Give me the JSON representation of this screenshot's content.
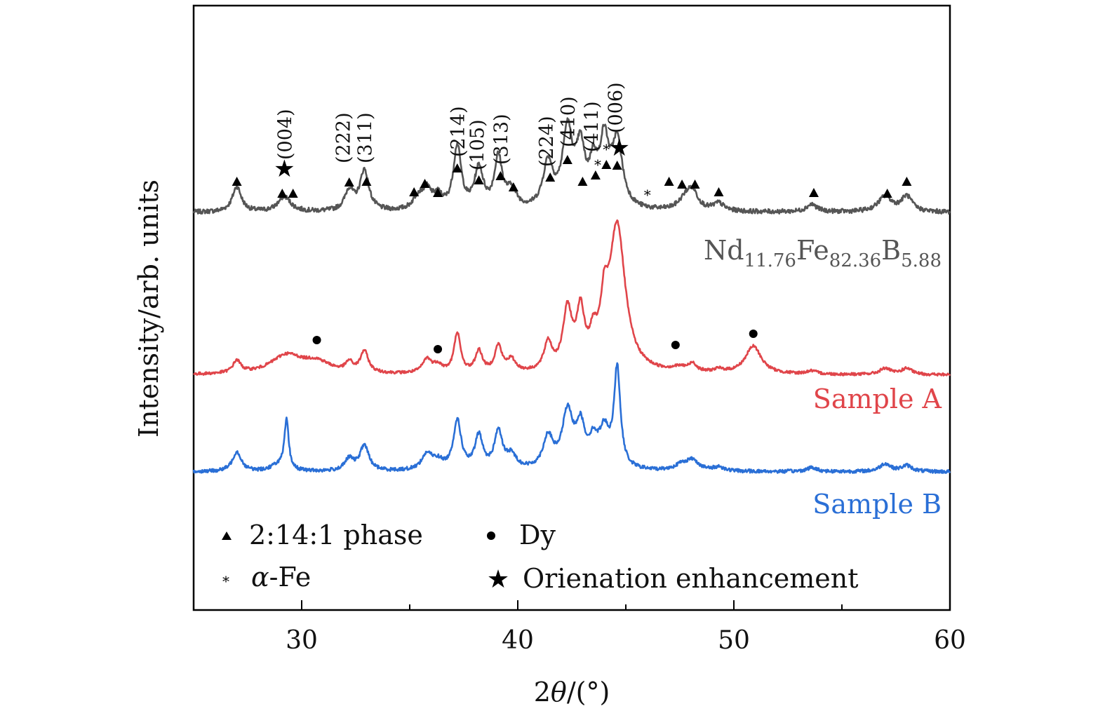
{
  "chart_data": {
    "type": "line",
    "title": "",
    "xlabel": "2θ/(°)",
    "ylabel": "Intensity/arb. units",
    "xlim": [
      25,
      60
    ],
    "xticks": [
      30,
      40,
      50,
      60
    ],
    "grid": false,
    "series": [
      {
        "name": "Nd11.76Fe82.36B5.88",
        "label_base": [
          "Nd",
          "Fe",
          "B"
        ],
        "label_sub": [
          "11.76",
          "82.36",
          "5.88"
        ],
        "color": "#555555",
        "offset": 2.0,
        "peaks": [
          [
            27.0,
            0.1,
            0.25
          ],
          [
            29.2,
            0.06,
            0.35
          ],
          [
            32.2,
            0.08,
            0.25
          ],
          [
            32.9,
            0.16,
            0.25
          ],
          [
            35.4,
            0.05,
            0.3
          ],
          [
            35.8,
            0.07,
            0.25
          ],
          [
            36.3,
            0.05,
            0.25
          ],
          [
            37.2,
            0.25,
            0.22
          ],
          [
            38.2,
            0.16,
            0.25
          ],
          [
            39.1,
            0.2,
            0.22
          ],
          [
            39.7,
            0.07,
            0.3
          ],
          [
            41.4,
            0.18,
            0.28
          ],
          [
            42.3,
            0.3,
            0.28
          ],
          [
            42.9,
            0.22,
            0.25
          ],
          [
            43.5,
            0.15,
            0.22
          ],
          [
            44.0,
            0.25,
            0.25
          ],
          [
            44.6,
            0.26,
            0.3
          ],
          [
            47.8,
            0.05,
            0.4
          ],
          [
            48.1,
            0.06,
            0.3
          ],
          [
            49.3,
            0.03,
            0.3
          ],
          [
            53.6,
            0.03,
            0.3
          ],
          [
            57.0,
            0.06,
            0.4
          ],
          [
            58.0,
            0.06,
            0.3
          ]
        ]
      },
      {
        "name": "Sample A",
        "color": "#e0454a",
        "offset": 1.0,
        "peaks": [
          [
            27.0,
            0.08,
            0.22
          ],
          [
            29.3,
            0.12,
            0.9
          ],
          [
            30.7,
            0.07,
            0.8
          ],
          [
            32.2,
            0.06,
            0.2
          ],
          [
            32.9,
            0.14,
            0.22
          ],
          [
            35.8,
            0.09,
            0.25
          ],
          [
            36.3,
            0.05,
            0.25
          ],
          [
            37.2,
            0.26,
            0.18
          ],
          [
            38.2,
            0.14,
            0.2
          ],
          [
            39.1,
            0.17,
            0.2
          ],
          [
            39.7,
            0.08,
            0.25
          ],
          [
            41.4,
            0.18,
            0.22
          ],
          [
            42.3,
            0.38,
            0.25
          ],
          [
            42.9,
            0.35,
            0.22
          ],
          [
            43.5,
            0.16,
            0.2
          ],
          [
            44.0,
            0.3,
            0.2
          ],
          [
            44.6,
            0.95,
            0.45
          ],
          [
            47.5,
            0.03,
            0.5
          ],
          [
            48.1,
            0.05,
            0.2
          ],
          [
            49.3,
            0.02,
            0.3
          ],
          [
            50.9,
            0.18,
            0.45
          ],
          [
            53.6,
            0.02,
            0.3
          ],
          [
            57.0,
            0.04,
            0.3
          ],
          [
            58.0,
            0.04,
            0.3
          ]
        ]
      },
      {
        "name": "Sample B",
        "color": "#2a6fd6",
        "offset": 0.0,
        "peaks": [
          [
            27.0,
            0.1,
            0.25
          ],
          [
            28.9,
            0.03,
            0.4
          ],
          [
            29.3,
            0.25,
            0.12
          ],
          [
            32.2,
            0.06,
            0.25
          ],
          [
            32.9,
            0.13,
            0.25
          ],
          [
            35.8,
            0.08,
            0.3
          ],
          [
            36.3,
            0.04,
            0.3
          ],
          [
            37.2,
            0.25,
            0.22
          ],
          [
            38.2,
            0.17,
            0.22
          ],
          [
            39.1,
            0.19,
            0.22
          ],
          [
            39.7,
            0.07,
            0.3
          ],
          [
            41.4,
            0.16,
            0.28
          ],
          [
            42.3,
            0.28,
            0.3
          ],
          [
            42.9,
            0.2,
            0.25
          ],
          [
            43.5,
            0.12,
            0.25
          ],
          [
            44.0,
            0.18,
            0.28
          ],
          [
            44.6,
            0.5,
            0.18
          ],
          [
            47.6,
            0.03,
            0.4
          ],
          [
            48.1,
            0.05,
            0.35
          ],
          [
            49.3,
            0.02,
            0.3
          ],
          [
            53.6,
            0.02,
            0.3
          ],
          [
            57.0,
            0.04,
            0.3
          ],
          [
            58.0,
            0.03,
            0.3
          ]
        ]
      }
    ],
    "annotations": {
      "triangles_phase_2_14_1": [
        27.0,
        29.1,
        29.6,
        32.2,
        33.0,
        35.2,
        35.7,
        36.3,
        37.2,
        38.2,
        39.2,
        39.8,
        41.5,
        42.3,
        43.0,
        43.6,
        44.1,
        44.6,
        47.0,
        47.6,
        48.2,
        49.3,
        53.7,
        57.1,
        58.0
      ],
      "stars_orientation": [
        29.2,
        44.7
      ],
      "asterisks_alpha_fe": [
        43.7,
        44.1,
        46.0
      ],
      "dots_dy": [
        30.7,
        36.3,
        47.3,
        50.9
      ],
      "planes": [
        {
          "x": 29.2,
          "label": "(004)"
        },
        {
          "x": 31.9,
          "label": "(222)"
        },
        {
          "x": 32.9,
          "label": "(311)"
        },
        {
          "x": 37.2,
          "label": "(214)"
        },
        {
          "x": 38.1,
          "label": "(105)"
        },
        {
          "x": 39.2,
          "label": "(313)"
        },
        {
          "x": 41.3,
          "label": "(224)"
        },
        {
          "x": 42.3,
          "label": "(410)"
        },
        {
          "x": 43.4,
          "label": "(411)"
        },
        {
          "x": 44.5,
          "label": "(006)"
        }
      ]
    },
    "legend": {
      "position": "bottom-left",
      "items": [
        {
          "symbol": "triangle",
          "label": "2:14:1 phase"
        },
        {
          "symbol": "dot",
          "label": "Dy"
        },
        {
          "symbol": "asterisk",
          "label_prefix": "α",
          "label": "-Fe"
        },
        {
          "symbol": "star",
          "label": "Orienation enhancement"
        }
      ]
    }
  }
}
